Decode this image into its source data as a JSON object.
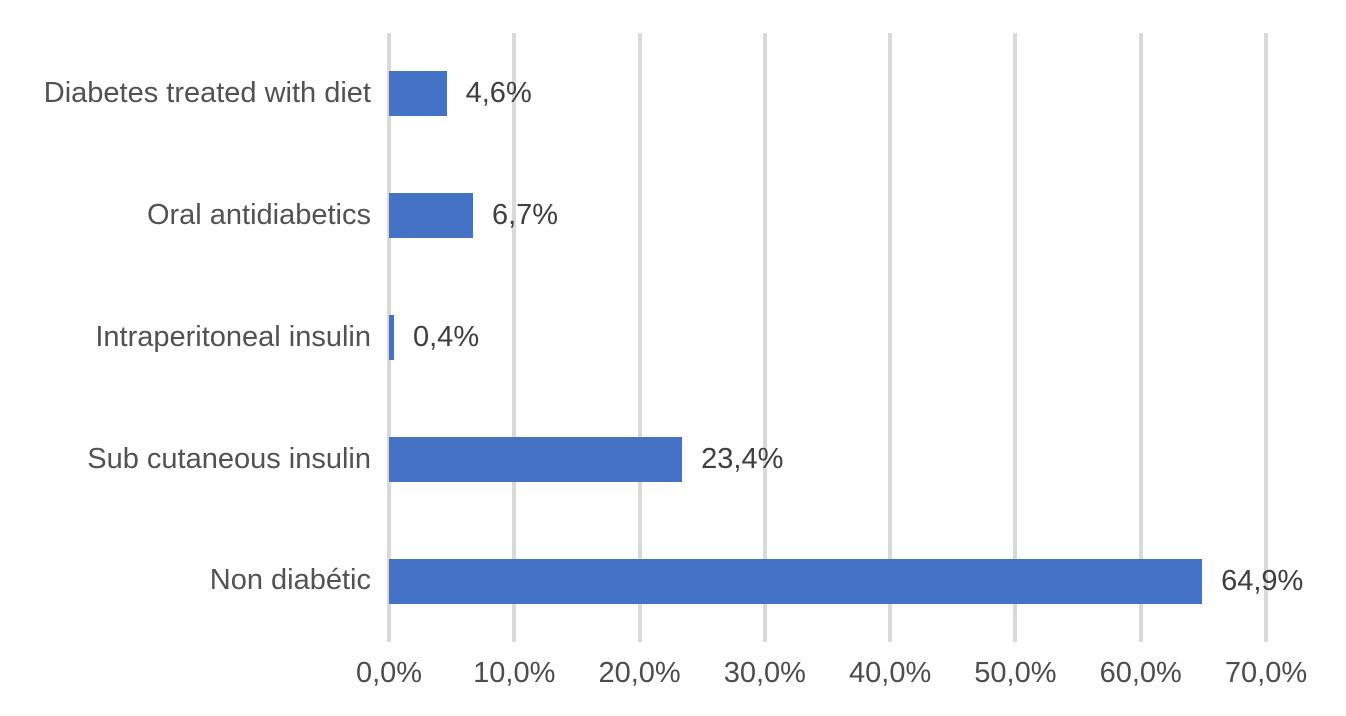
{
  "chart_data": {
    "type": "bar",
    "orientation": "horizontal",
    "title": "",
    "xlabel": "",
    "ylabel": "",
    "grid": true,
    "legend": false,
    "categories": [
      "Diabetes treated with diet",
      "Oral antidiabetics",
      "Intraperitoneal insulin",
      "Sub cutaneous insulin",
      "Non diabétic"
    ],
    "values": [
      4.6,
      6.7,
      0.4,
      23.4,
      64.9
    ],
    "data_labels": [
      "4,6%",
      "6,7%",
      "0,4%",
      "23,4%",
      "64,9%"
    ],
    "x_axis": {
      "min": 0,
      "max": 70,
      "ticks": [
        0,
        10,
        20,
        30,
        40,
        50,
        60,
        70
      ],
      "tick_labels": [
        "0,0%",
        "10,0%",
        "20,0%",
        "30,0%",
        "40,0%",
        "50,0%",
        "60,0%",
        "70,0%"
      ]
    },
    "colors": {
      "bar": "#4472C4",
      "gridline": "#D9D9D9",
      "category_label": "#525254",
      "data_label": "#3F3F41",
      "axis_label": "#4D4D4F",
      "background": "#FFFFFF"
    }
  }
}
